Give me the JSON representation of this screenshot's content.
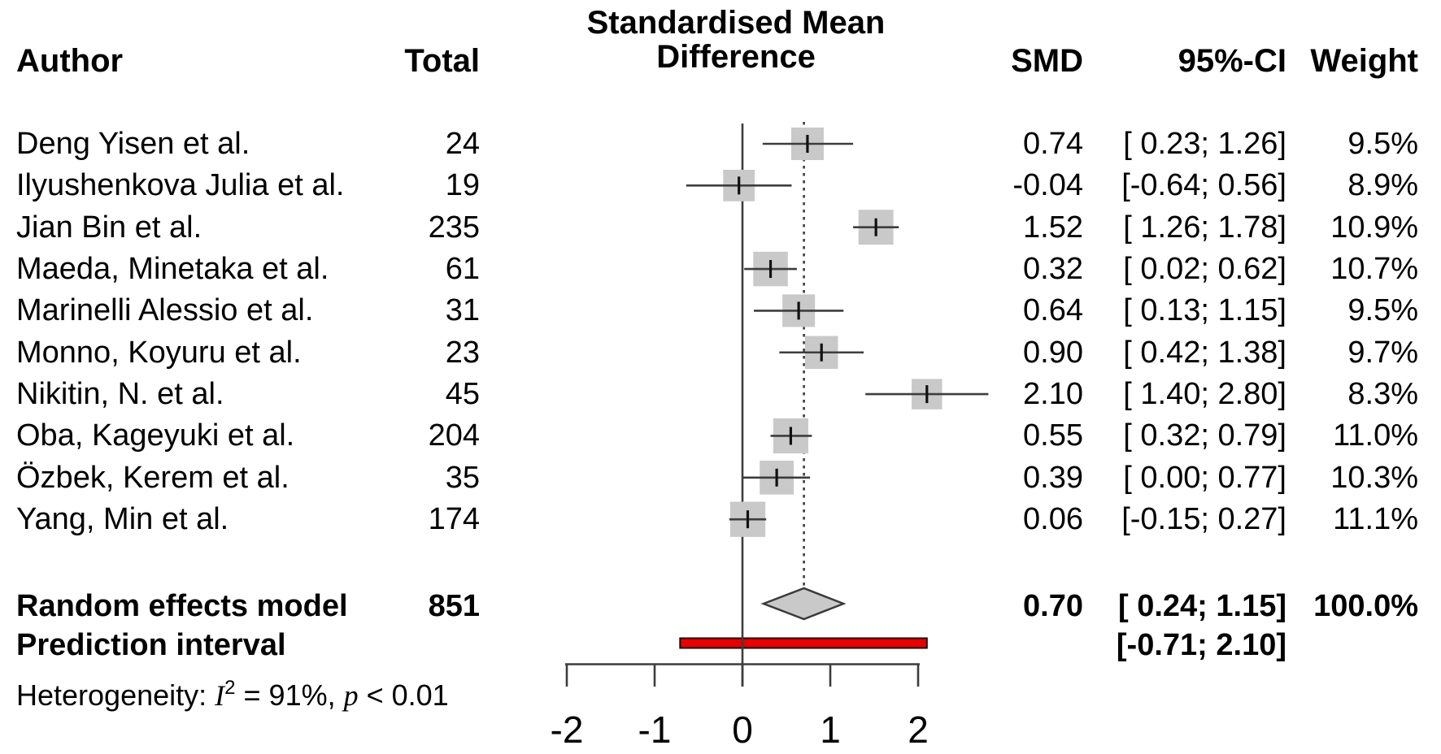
{
  "title": {
    "line1": "Standardised Mean",
    "line2": "Difference"
  },
  "columns": {
    "author": "Author",
    "total": "Total",
    "smd": "SMD",
    "ci": "95%-CI",
    "weight": "Weight"
  },
  "summary": {
    "random_label": "Random effects model",
    "random_total": "851",
    "random_smd": "0.70",
    "random_ci": "[ 0.24; 1.15]",
    "random_weight": "100.0%",
    "prediction_label": "Prediction interval",
    "prediction_ci": "[-0.71; 2.10]"
  },
  "heterogeneity": {
    "prefix": "Heterogeneity: ",
    "stat": "I",
    "stat_sup": "2",
    "mid": " = 91%, ",
    "p": "p",
    "tail": " < 0.01"
  },
  "axis_tick_labels": [
    "-2",
    "-1",
    "0",
    "1",
    "2"
  ],
  "colors": {
    "marker_fill": "#c9c9c9",
    "line": "#3d3d3d",
    "tick_mark": "#111111",
    "diamond_fill": "#c9c9c9",
    "diamond_stroke": "#3a3a3a",
    "prediction_fill": "#e60000",
    "prediction_stroke": "#1a0000",
    "text": "#000000",
    "background": "#ffffff"
  },
  "chart_data": {
    "type": "forest",
    "title": "Standardised Mean Difference",
    "x_ticks": [
      -2,
      -1,
      0,
      1,
      2
    ],
    "xlim": [
      -2.3,
      2.9
    ],
    "reference_line": 0,
    "overall_effect_line": 0.7,
    "studies": [
      {
        "author": "Deng Yisen et al.",
        "total": 24,
        "smd": 0.74,
        "ci_low": 0.23,
        "ci_high": 1.26,
        "weight_pct": 9.5,
        "smd_label": "0.74",
        "ci_label": "[ 0.23; 1.26]",
        "weight_label": "9.5%",
        "total_label": "24"
      },
      {
        "author": "Ilyushenkova Julia et al.",
        "total": 19,
        "smd": -0.04,
        "ci_low": -0.64,
        "ci_high": 0.56,
        "weight_pct": 8.9,
        "smd_label": "-0.04",
        "ci_label": "[-0.64; 0.56]",
        "weight_label": "8.9%",
        "total_label": "19"
      },
      {
        "author": "Jian Bin et al.",
        "total": 235,
        "smd": 1.52,
        "ci_low": 1.26,
        "ci_high": 1.78,
        "weight_pct": 10.9,
        "smd_label": "1.52",
        "ci_label": "[ 1.26; 1.78]",
        "weight_label": "10.9%",
        "total_label": "235"
      },
      {
        "author": "Maeda, Minetaka et al.",
        "total": 61,
        "smd": 0.32,
        "ci_low": 0.02,
        "ci_high": 0.62,
        "weight_pct": 10.7,
        "smd_label": "0.32",
        "ci_label": "[ 0.02; 0.62]",
        "weight_label": "10.7%",
        "total_label": "61"
      },
      {
        "author": "Marinelli Alessio et al.",
        "total": 31,
        "smd": 0.64,
        "ci_low": 0.13,
        "ci_high": 1.15,
        "weight_pct": 9.5,
        "smd_label": "0.64",
        "ci_label": "[ 0.13; 1.15]",
        "weight_label": "9.5%",
        "total_label": "31"
      },
      {
        "author": "Monno, Koyuru et al.",
        "total": 23,
        "smd": 0.9,
        "ci_low": 0.42,
        "ci_high": 1.38,
        "weight_pct": 9.7,
        "smd_label": "0.90",
        "ci_label": "[ 0.42; 1.38]",
        "weight_label": "9.7%",
        "total_label": "23"
      },
      {
        "author": "Nikitin, N. et al.",
        "total": 45,
        "smd": 2.1,
        "ci_low": 1.4,
        "ci_high": 2.8,
        "weight_pct": 8.3,
        "smd_label": "2.10",
        "ci_label": "[ 1.40; 2.80]",
        "weight_label": "8.3%",
        "total_label": "45"
      },
      {
        "author": "Oba, Kageyuki et al.",
        "total": 204,
        "smd": 0.55,
        "ci_low": 0.32,
        "ci_high": 0.79,
        "weight_pct": 11.0,
        "smd_label": "0.55",
        "ci_label": "[ 0.32; 0.79]",
        "weight_label": "11.0%",
        "total_label": "204"
      },
      {
        "author": "Özbek, Kerem et al.",
        "total": 35,
        "smd": 0.39,
        "ci_low": 0.0,
        "ci_high": 0.77,
        "weight_pct": 10.3,
        "smd_label": "0.39",
        "ci_label": "[ 0.00; 0.77]",
        "weight_label": "10.3%",
        "total_label": "35"
      },
      {
        "author": "Yang, Min et al.",
        "total": 174,
        "smd": 0.06,
        "ci_low": -0.15,
        "ci_high": 0.27,
        "weight_pct": 11.1,
        "smd_label": "0.06",
        "ci_label": "[-0.15; 0.27]",
        "weight_label": "11.1%",
        "total_label": "174"
      }
    ],
    "random_effects": {
      "label": "Random effects model",
      "total": 851,
      "smd": 0.7,
      "ci_low": 0.24,
      "ci_high": 1.15,
      "weight_pct": 100.0
    },
    "prediction_interval": {
      "label": "Prediction interval",
      "ci_low": -0.71,
      "ci_high": 2.1
    },
    "heterogeneity": {
      "i_squared_pct": 91,
      "p_text": "p < 0.01"
    }
  }
}
